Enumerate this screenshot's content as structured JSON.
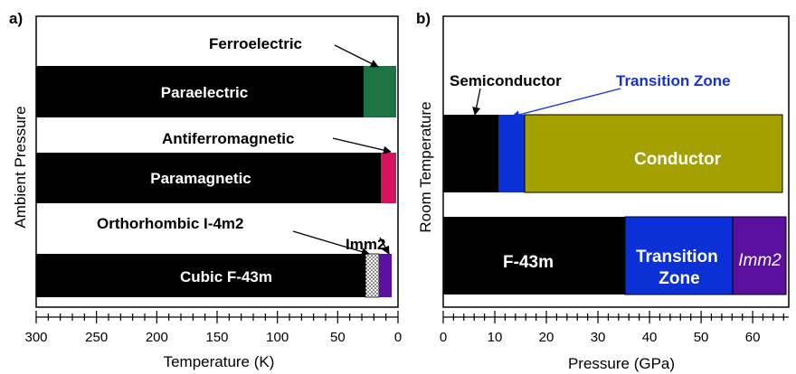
{
  "chart_data": [
    {
      "type": "bar",
      "panel_label": "a)",
      "xlabel": "Temperature (K)",
      "ylabel": "Ambient Pressure",
      "xlim": [
        300,
        0
      ],
      "x_reversed": true,
      "x_ticks": [
        300,
        250,
        200,
        150,
        100,
        50,
        0
      ],
      "x_minor_tick_step": 10,
      "rows": [
        {
          "segments": [
            {
              "label": "Paraelectric",
              "from": 300,
              "to": 27,
              "color": "#000000",
              "text_color": "#ffffff"
            },
            {
              "label": "",
              "from": 27,
              "to": 0,
              "color": "#1e7345"
            }
          ],
          "annotation": {
            "text": "Ferroelectric",
            "points_to": 16
          }
        },
        {
          "segments": [
            {
              "label": "Paramagnetic",
              "from": 300,
              "to": 13,
              "color": "#000000",
              "text_color": "#ffffff"
            },
            {
              "label": "",
              "from": 13,
              "to": 0,
              "color": "#d4145a"
            }
          ],
          "annotation": {
            "text": "Antiferromagnetic",
            "points_to": 3
          }
        },
        {
          "segments": [
            {
              "label": "Cubic F-43m",
              "from": 300,
              "to": 26,
              "color": "#000000",
              "text_color": "#ffffff"
            },
            {
              "label": "",
              "from": 26,
              "to": 15,
              "color": "#ffffff",
              "pattern": "dots"
            },
            {
              "label": "",
              "from": 15,
              "to": 4,
              "color": "#5b0f9e"
            }
          ],
          "annotations": [
            {
              "text": "Orthorhombic I-4m2",
              "points_to": 21
            },
            {
              "text": "Imm2",
              "points_to": 9
            }
          ]
        }
      ]
    },
    {
      "type": "bar",
      "panel_label": "b)",
      "xlabel": "Pressure (GPa)",
      "ylabel": "Room Temperature",
      "xlim": [
        0,
        67
      ],
      "x_ticks": [
        0,
        10,
        20,
        30,
        40,
        50,
        60
      ],
      "x_minor_tick_step": 2,
      "rows": [
        {
          "segments": [
            {
              "label": "",
              "from": 0,
              "to": 10.5,
              "color": "#000000"
            },
            {
              "label": "",
              "from": 10.5,
              "to": 15.5,
              "color": "#0a30d6"
            },
            {
              "label": "Conductor",
              "from": 15.5,
              "to": 65,
              "color": "#a3a100",
              "text_color": "#ffffff"
            }
          ],
          "annotations": [
            {
              "text": "Semiconductor",
              "points_to": 6,
              "color": "#000000"
            },
            {
              "text": "Transition Zone",
              "points_to": 13,
              "color": "#1431d6"
            }
          ]
        },
        {
          "segments": [
            {
              "label": "F-43m",
              "from": 0,
              "to": 34.5,
              "color": "#000000",
              "text_color": "#ffffff"
            },
            {
              "label": "Transition\nZone",
              "from": 34.5,
              "to": 55.5,
              "color": "#0a30d6",
              "text_color": "#ffffff"
            },
            {
              "label": "Imm2",
              "from": 55.5,
              "to": 65.5,
              "color": "#5b0f9e",
              "text_color": "#ffffff",
              "italic": true
            }
          ]
        }
      ]
    }
  ]
}
